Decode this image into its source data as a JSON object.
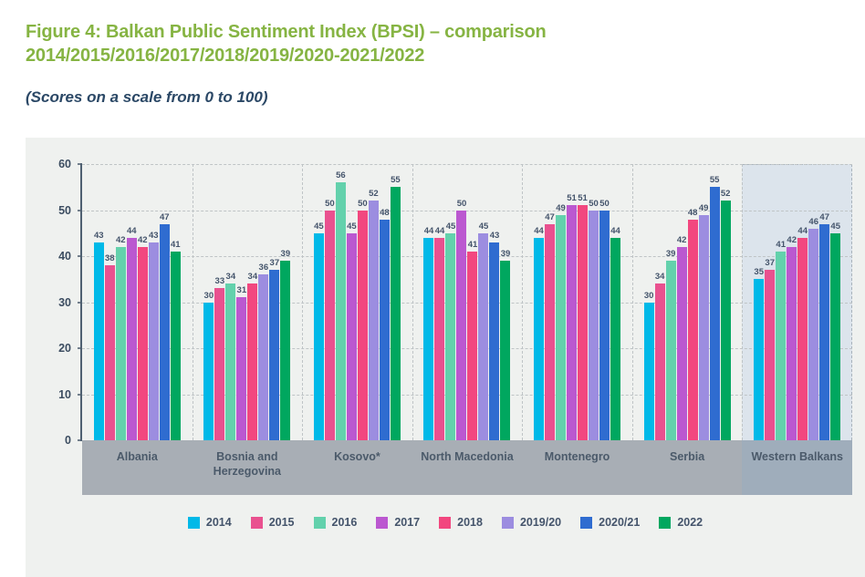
{
  "figure": {
    "title_line1": "Figure 4: Balkan Public Sentiment Index (BPSI) – comparison",
    "title_line2": "2014/2015/2016/2017/2018/2019/2020-2021/2022",
    "subtitle": "(Scores on a scale from 0 to 100)"
  },
  "colors": {
    "title-green": "#86b443",
    "subtitle-navy": "#2b4866",
    "card-bg": "#eff1ef",
    "grid": "#bfc4c6",
    "grid-dark": "#7e8894",
    "axis-text": "#3c4d61",
    "axis-line": "#4f6071",
    "value-text": "#44546b",
    "cat-text": "#4b5a6a",
    "band-gray": "#a8aeb5",
    "band-blue": "#9fadbb",
    "highlight-bg": "#dce4ec",
    "highlight-border": "#a9b3bc"
  },
  "chart_data": {
    "type": "bar",
    "title": "Balkan Public Sentiment Index (BPSI) comparison by year",
    "categories": [
      "Albania",
      "Bosnia and Herzegovina",
      "Kosovo*",
      "North Macedonia",
      "Montenegro",
      "Serbia",
      "Western Balkans"
    ],
    "series": [
      {
        "name": "2014",
        "color": "#00b9e8",
        "values": [
          43,
          30,
          45,
          44,
          44,
          30,
          35
        ]
      },
      {
        "name": "2015",
        "color": "#e9518f",
        "values": [
          38,
          33,
          50,
          44,
          47,
          34,
          37
        ]
      },
      {
        "name": "2016",
        "color": "#63d1ac",
        "values": [
          42,
          34,
          56,
          45,
          49,
          39,
          41
        ]
      },
      {
        "name": "2017",
        "color": "#bb58d0",
        "values": [
          44,
          31,
          45,
          50,
          51,
          42,
          42
        ]
      },
      {
        "name": "2018",
        "color": "#f2477f",
        "values": [
          42,
          34,
          50,
          41,
          51,
          48,
          44
        ]
      },
      {
        "name": "2019/20",
        "color": "#9c8de0",
        "values": [
          43,
          36,
          52,
          45,
          50,
          49,
          46
        ]
      },
      {
        "name": "2020/21",
        "color": "#2f6cd0",
        "values": [
          47,
          37,
          48,
          43,
          50,
          55,
          47
        ]
      },
      {
        "name": "2022",
        "color": "#00a75f",
        "values": [
          41,
          39,
          55,
          39,
          44,
          52,
          45
        ]
      }
    ],
    "ylim": [
      0,
      60
    ],
    "yticks": [
      0,
      10,
      20,
      30,
      40,
      50,
      60
    ],
    "grid": "dashed-horizontal",
    "legend_position": "bottom",
    "highlighted_category": "Western Balkans",
    "bar_value_labels": true
  }
}
